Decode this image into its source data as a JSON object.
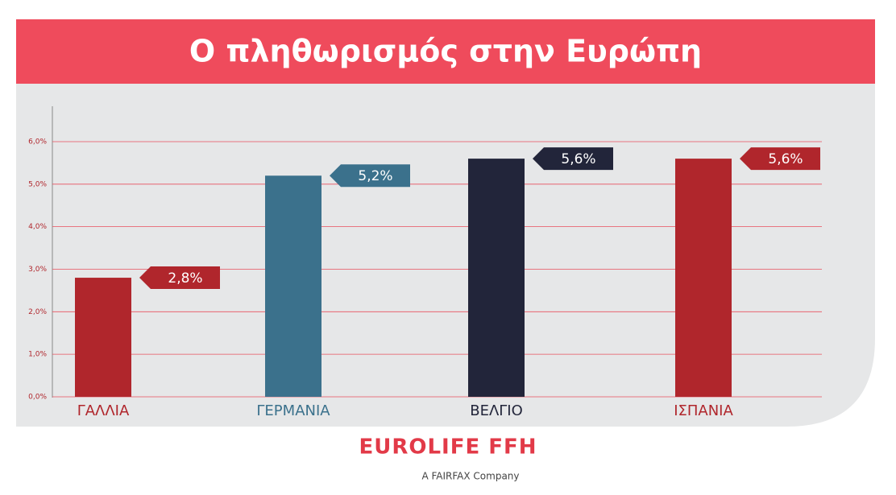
{
  "chart_data": {
    "type": "bar",
    "title": "Ο πληθωρισμός στην Ευρώπη",
    "categories": [
      "ΓΑΛΛΙΑ",
      "ΓΕΡΜΑΝΙΑ",
      "ΒΕΛΓΙΟ",
      "ΙΣΠΑΝΙΑ"
    ],
    "values": [
      2.8,
      5.2,
      5.6,
      5.6
    ],
    "value_labels": [
      "2,8%",
      "5,2%",
      "5,6%",
      "5,6%"
    ],
    "colors": [
      "#b0262c",
      "#3b718c",
      "#22253a",
      "#b0262c"
    ],
    "ylim": [
      0,
      6.8
    ],
    "yticks": [
      {
        "value": 0,
        "label": "0,0%"
      },
      {
        "value": 1,
        "label": "1,0%"
      },
      {
        "value": 2,
        "label": "2,0%"
      },
      {
        "value": 3,
        "label": "3,0%"
      },
      {
        "value": 4,
        "label": "4,0%"
      },
      {
        "value": 5,
        "label": "5,0%"
      },
      {
        "value": 6,
        "label": "6,0%"
      }
    ],
    "grid": true
  },
  "footer": {
    "brand": "EUROLIFE FFH",
    "tagline": "A FAIRFAX Company"
  }
}
